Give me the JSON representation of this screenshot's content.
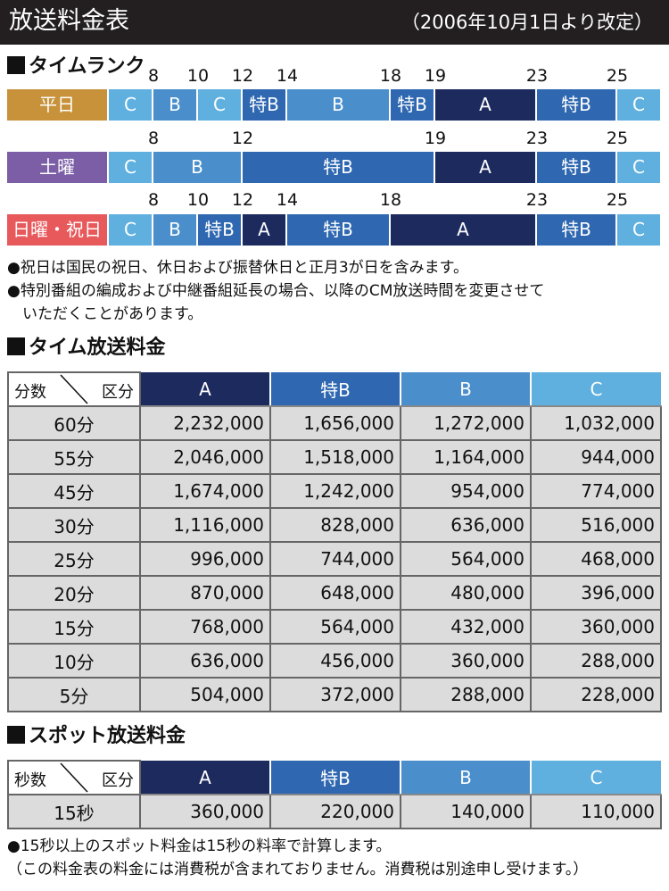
{
  "header": {
    "title": "放送料金表",
    "date_note": "（2006年10月1日より改定）"
  },
  "colors": {
    "A": "#1c2a5e",
    "TB": "#2f68b1",
    "B": "#4a8fcb",
    "C": "#5fb0df",
    "weekday": "#c7923a",
    "saturday": "#7b5ea6",
    "holiday": "#e8595b"
  },
  "time_rank": {
    "heading": "タイムランク",
    "rows": [
      {
        "label": "平日",
        "hours": [
          "8",
          "10",
          "12",
          "14",
          "18",
          "19",
          "23",
          "25"
        ],
        "segments": [
          "C",
          "B",
          "C",
          "特B",
          "B",
          "特B",
          "A",
          "特B",
          "C"
        ]
      },
      {
        "label": "土曜",
        "hours": [
          "8",
          "12",
          "19",
          "23",
          "25"
        ],
        "segments": [
          "C",
          "B",
          "特B",
          "A",
          "特B",
          "C"
        ]
      },
      {
        "label": "日曜・祝日",
        "hours": [
          "8",
          "10",
          "12",
          "14",
          "18",
          "23",
          "25"
        ],
        "segments": [
          "C",
          "B",
          "特B",
          "A",
          "特B",
          "A",
          "特B",
          "C"
        ]
      }
    ],
    "notes": [
      "●祝日は国民の祝日、休日および振替休日と正月3が日を含みます。",
      "●特別番組の編成および中継番組延長の場合、以降のCM放送時間を変更させて",
      "　いただくことがあります。"
    ]
  },
  "time_rates": {
    "heading": "タイム放送料金",
    "corner_left": "分数",
    "corner_right": "区分",
    "columns": [
      "A",
      "特B",
      "B",
      "C"
    ],
    "rows": [
      {
        "label": "60分",
        "values": [
          "2,232,000",
          "1,656,000",
          "1,272,000",
          "1,032,000"
        ]
      },
      {
        "label": "55分",
        "values": [
          "2,046,000",
          "1,518,000",
          "1,164,000",
          "944,000"
        ]
      },
      {
        "label": "45分",
        "values": [
          "1,674,000",
          "1,242,000",
          "954,000",
          "774,000"
        ]
      },
      {
        "label": "30分",
        "values": [
          "1,116,000",
          "828,000",
          "636,000",
          "516,000"
        ]
      },
      {
        "label": "25分",
        "values": [
          "996,000",
          "744,000",
          "564,000",
          "468,000"
        ]
      },
      {
        "label": "20分",
        "values": [
          "870,000",
          "648,000",
          "480,000",
          "396,000"
        ]
      },
      {
        "label": "15分",
        "values": [
          "768,000",
          "564,000",
          "432,000",
          "360,000"
        ]
      },
      {
        "label": "10分",
        "values": [
          "636,000",
          "456,000",
          "360,000",
          "288,000"
        ]
      },
      {
        "label": "5分",
        "values": [
          "504,000",
          "372,000",
          "288,000",
          "228,000"
        ]
      }
    ]
  },
  "spot_rates": {
    "heading": "スポット放送料金",
    "corner_left": "秒数",
    "corner_right": "区分",
    "columns": [
      "A",
      "特B",
      "B",
      "C"
    ],
    "rows": [
      {
        "label": "15秒",
        "values": [
          "360,000",
          "220,000",
          "140,000",
          "110,000"
        ]
      }
    ],
    "notes": [
      "●15秒以上のスポット料金は15秒の料率で計算します。",
      "（この料金表の料金には消費税が含まれておりません。消費税は別途申し受けます。）"
    ]
  }
}
